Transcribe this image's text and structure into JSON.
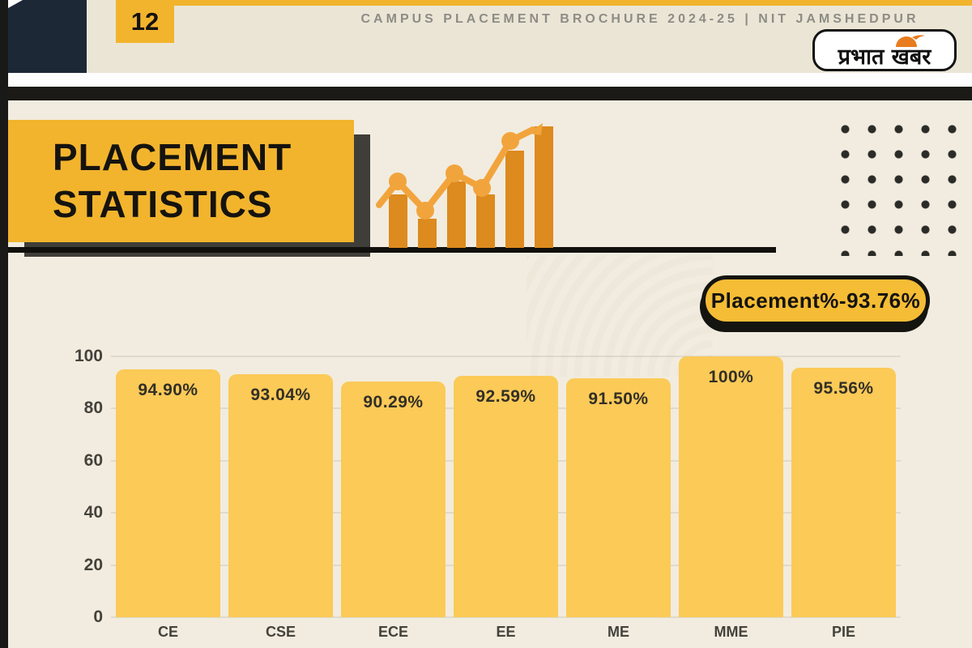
{
  "header": {
    "page_number": "12",
    "title": "CAMPUS PLACEMENT BROCHURE 2024-25 | NIT JAMSHEDPUR",
    "logo_text": "प्रभात खबर"
  },
  "section_title": {
    "line1": "PLACEMENT",
    "line2": "STATISTICS"
  },
  "badge": {
    "label": "Placement%-93.76%"
  },
  "chart_data": {
    "type": "bar",
    "categories": [
      "CE",
      "CSE",
      "ECE",
      "EE",
      "ME",
      "MME",
      "PIE"
    ],
    "values": [
      94.9,
      93.04,
      90.29,
      92.59,
      91.5,
      100,
      95.56
    ],
    "value_labels": [
      "94.90%",
      "93.04%",
      "90.29%",
      "92.59%",
      "91.50%",
      "100%",
      "95.56%"
    ],
    "overall_placement_percent": 93.76,
    "title": "",
    "xlabel": "",
    "ylabel": "",
    "ylim": [
      0,
      100
    ],
    "yticks": [
      0,
      20,
      40,
      60,
      80,
      100
    ],
    "grid": true,
    "legend": "none",
    "bar_color": "#fbca57"
  },
  "colors": {
    "accent_yellow": "#f2b42d",
    "badge_yellow": "#f5bc35",
    "bar_yellow": "#fbca57",
    "navy": "#1d2836",
    "near_black": "#15130f",
    "header_cream": "#ebe5d6",
    "main_cream": "#f1ecdf",
    "icon_orange": "#dd8a1e",
    "icon_light_orange": "#f2a43c",
    "gray_text": "#8d8c85"
  }
}
